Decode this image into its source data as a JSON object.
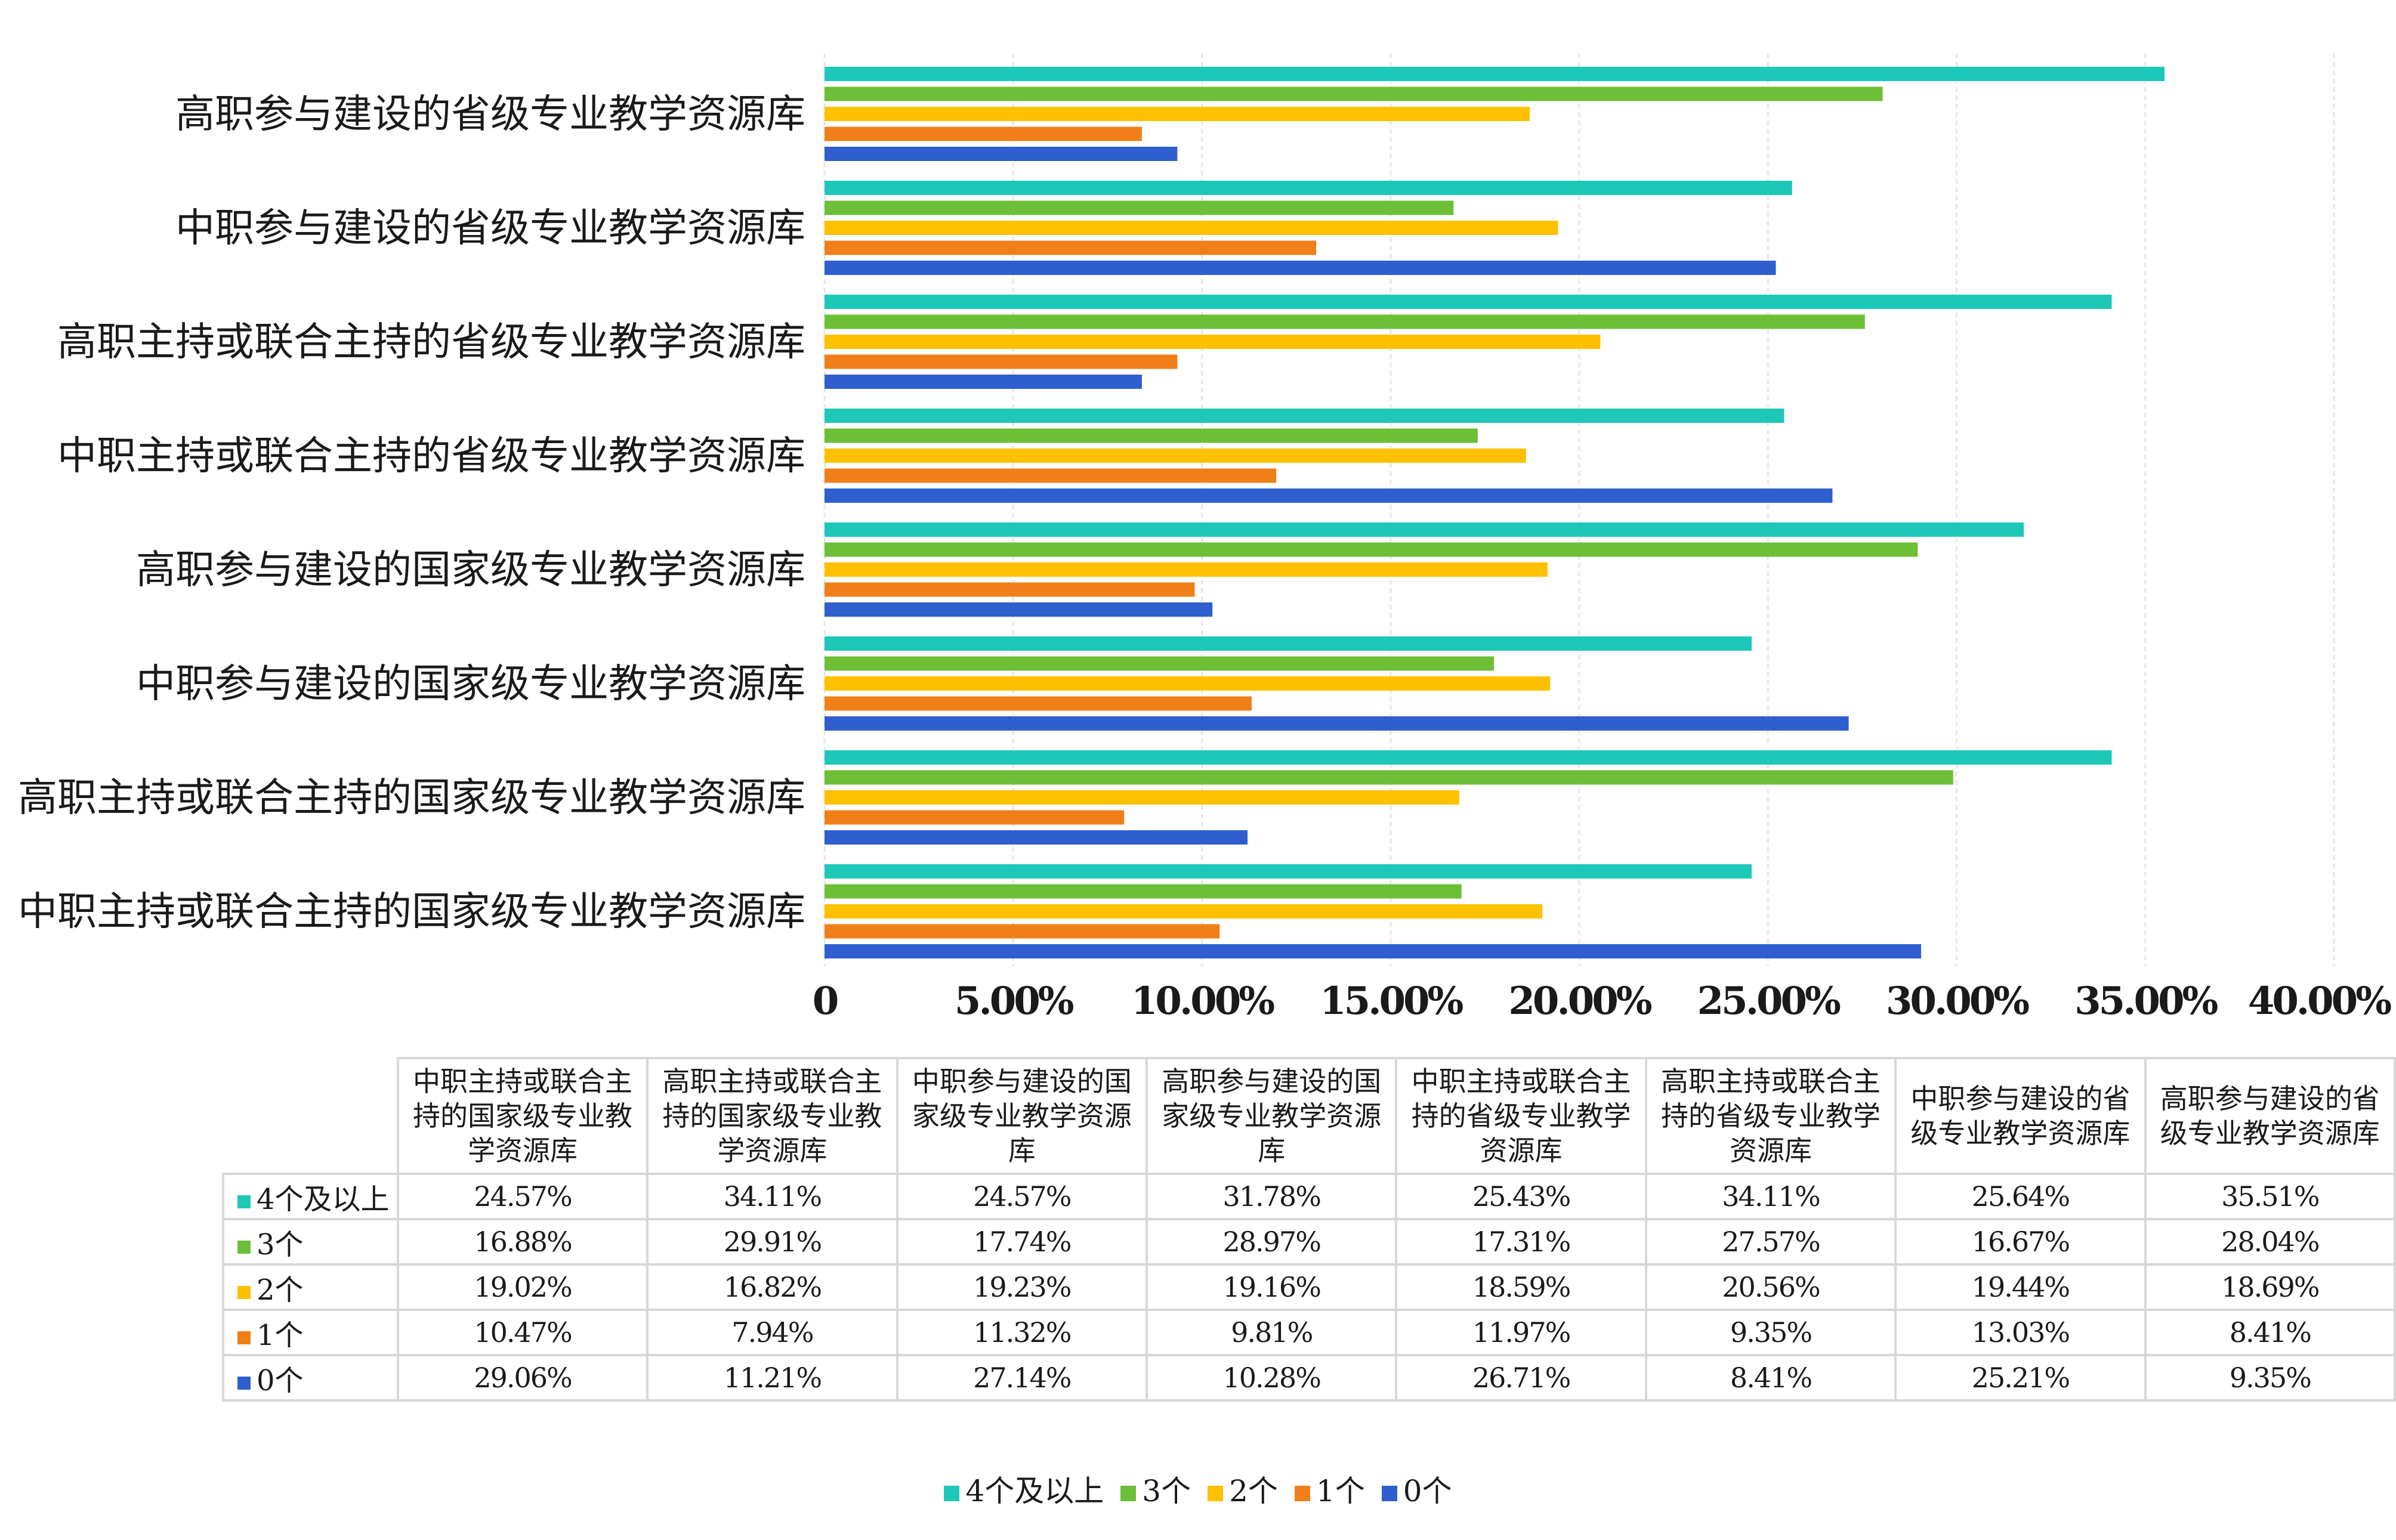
{
  "colors": {
    "4个及以上": "#1ec8b8",
    "3个": "#6cbf36",
    "2个": "#ffc000",
    "1个": "#f07f1a",
    "0个": "#2f5fcf"
  },
  "chart_data": {
    "type": "bar",
    "orientation": "horizontal",
    "categories": [
      "高职参与建设的省级专业教学资源库",
      "中职参与建设的省级专业教学资源库",
      "高职主持或联合主持的省级专业教学资源库",
      "中职主持或联合主持的省级专业教学资源库",
      "高职参与建设的国家级专业教学资源库",
      "中职参与建设的国家级专业教学资源库",
      "高职主持或联合主持的国家级专业教学资源库",
      "中职主持或联合主持的国家级专业教学资源库"
    ],
    "series": [
      {
        "name": "4个及以上",
        "values": [
          35.51,
          25.64,
          34.11,
          25.43,
          31.78,
          24.57,
          34.11,
          24.57
        ]
      },
      {
        "name": "3个",
        "values": [
          28.04,
          16.67,
          27.57,
          17.31,
          28.97,
          17.74,
          29.91,
          16.88
        ]
      },
      {
        "name": "2个",
        "values": [
          18.69,
          19.44,
          20.56,
          18.59,
          19.16,
          19.23,
          16.82,
          19.02
        ]
      },
      {
        "name": "1个",
        "values": [
          8.41,
          13.03,
          9.35,
          11.97,
          9.81,
          11.32,
          7.94,
          10.47
        ]
      },
      {
        "name": "0个",
        "values": [
          9.35,
          25.21,
          8.41,
          26.71,
          10.28,
          27.14,
          11.21,
          29.06
        ]
      }
    ],
    "xlim": [
      0,
      40
    ],
    "x_ticks": [
      "0",
      "5.00%",
      "10.00%",
      "15.00%",
      "20.00%",
      "25.00%",
      "30.00%",
      "35.00%",
      "40.00%"
    ],
    "grid": true,
    "legend": "bottom",
    "table": {
      "columns": [
        "中职主持或联合主持的国家级专业教学资源库",
        "高职主持或联合主持的国家级专业教学资源库",
        "中职参与建设的国家级专业教学资源库",
        "高职参与建设的国家级专业教学资源库",
        "中职主持或联合主持的省级专业教学资源库",
        "高职主持或联合主持的省级专业教学资源库",
        "中职参与建设的省级专业教学资源库",
        "高职参与建设的省级专业教学资源库"
      ],
      "rows": [
        {
          "name": "4个及以上",
          "cells": [
            "24.57%",
            "34.11%",
            "24.57%",
            "31.78%",
            "25.43%",
            "34.11%",
            "25.64%",
            "35.51%"
          ]
        },
        {
          "name": "3个",
          "cells": [
            "16.88%",
            "29.91%",
            "17.74%",
            "28.97%",
            "17.31%",
            "27.57%",
            "16.67%",
            "28.04%"
          ]
        },
        {
          "name": "2个",
          "cells": [
            "19.02%",
            "16.82%",
            "19.23%",
            "19.16%",
            "18.59%",
            "20.56%",
            "19.44%",
            "18.69%"
          ]
        },
        {
          "name": "1个",
          "cells": [
            "10.47%",
            "7.94%",
            "11.32%",
            "9.81%",
            "11.97%",
            "9.35%",
            "13.03%",
            "8.41%"
          ]
        },
        {
          "name": "0个",
          "cells": [
            "29.06%",
            "11.21%",
            "27.14%",
            "10.28%",
            "26.71%",
            "8.41%",
            "25.21%",
            "9.35%"
          ]
        }
      ]
    }
  }
}
